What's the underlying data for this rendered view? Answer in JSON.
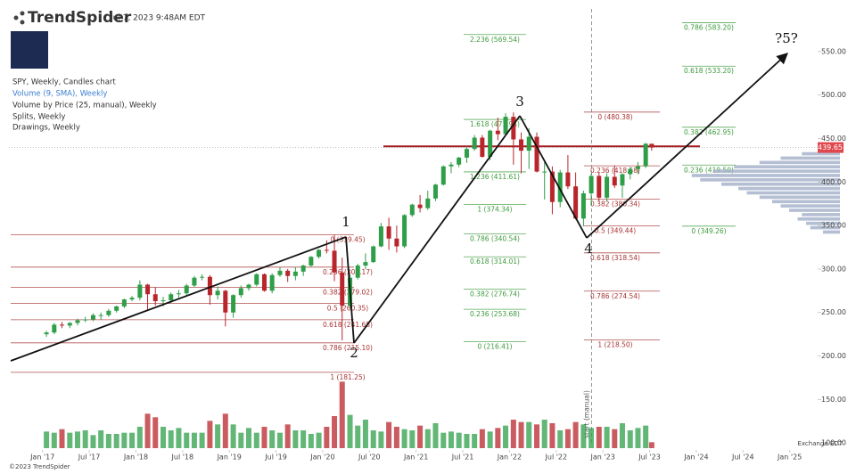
{
  "header": {
    "brand": "TrendSpider",
    "timestamp": "Jul 7, 2023 9:48AM EDT"
  },
  "legend": [
    "SPY, Weekly, Candles chart",
    "Volume (9, SMA), Weekly",
    "Volume by Price (25, manual), Weekly",
    "Splits, Weekly",
    "Drawings, Weekly"
  ],
  "footer": {
    "copyright": "©2023 TrendSpider",
    "exchange": "Exchange EDT"
  },
  "chart_data": {
    "type": "candlestick",
    "x": [
      2017.042,
      2017.125,
      2017.208,
      2017.292,
      2017.375,
      2017.458,
      2017.542,
      2017.625,
      2017.708,
      2017.792,
      2017.875,
      2017.958,
      2018.042,
      2018.125,
      2018.208,
      2018.292,
      2018.375,
      2018.458,
      2018.542,
      2018.625,
      2018.708,
      2018.792,
      2018.875,
      2018.958,
      2019.042,
      2019.125,
      2019.208,
      2019.292,
      2019.375,
      2019.458,
      2019.542,
      2019.625,
      2019.708,
      2019.792,
      2019.875,
      2019.958,
      2020.042,
      2020.125,
      2020.208,
      2020.292,
      2020.375,
      2020.458,
      2020.542,
      2020.625,
      2020.708,
      2020.792,
      2020.875,
      2020.958,
      2021.042,
      2021.125,
      2021.208,
      2021.292,
      2021.375,
      2021.458,
      2021.542,
      2021.625,
      2021.708,
      2021.792,
      2021.875,
      2021.958,
      2022.042,
      2022.125,
      2022.208,
      2022.292,
      2022.375,
      2022.458,
      2022.542,
      2022.625,
      2022.708,
      2022.792,
      2022.875,
      2022.958,
      2023.042,
      2023.125,
      2023.208,
      2023.292,
      2023.375,
      2023.458,
      2023.522
    ],
    "open": [
      225,
      227,
      236,
      235,
      238,
      241,
      242,
      247,
      247,
      252,
      257,
      265,
      267,
      282,
      271,
      263,
      264,
      271,
      272,
      281,
      290,
      291,
      270,
      275,
      250,
      270,
      278,
      282,
      294,
      275,
      293,
      298,
      292,
      297,
      304,
      314,
      322,
      321,
      296,
      258,
      290,
      304,
      308,
      326,
      349,
      335,
      326,
      362,
      374,
      370,
      381,
      397,
      418,
      420,
      428,
      438,
      451,
      429,
      459,
      455,
      475,
      449,
      436,
      452,
      412,
      412,
      377,
      411,
      395,
      358,
      387,
      407,
      382,
      406,
      396,
      409,
      415,
      418,
      444
    ],
    "high": [
      229,
      238,
      239,
      239,
      243,
      245,
      249,
      250,
      254,
      258,
      266,
      269,
      287,
      283,
      279,
      268,
      273,
      276,
      283,
      292,
      294,
      293,
      280,
      276,
      271,
      281,
      283,
      295,
      295,
      295,
      302,
      300,
      302,
      305,
      315,
      323,
      333,
      339,
      313,
      294,
      306,
      318,
      327,
      353,
      359,
      350,
      363,
      375,
      385,
      390,
      398,
      419,
      423,
      429,
      441,
      454,
      454,
      460,
      474,
      479,
      480,
      457,
      462,
      457,
      423,
      418,
      414,
      431,
      411,
      390,
      410,
      411,
      410,
      419,
      410,
      417,
      423,
      445,
      443
    ],
    "low": [
      222,
      225,
      232,
      232,
      235,
      239,
      240,
      242,
      245,
      250,
      255,
      263,
      264,
      253,
      258,
      257,
      261,
      267,
      269,
      279,
      287,
      259,
      265,
      234,
      244,
      267,
      275,
      280,
      274,
      272,
      291,
      285,
      287,
      292,
      302,
      312,
      318,
      286,
      218,
      255,
      288,
      300,
      307,
      325,
      322,
      319,
      324,
      360,
      365,
      368,
      378,
      396,
      410,
      417,
      422,
      436,
      428,
      425,
      448,
      454,
      420,
      410,
      415,
      411,
      380,
      363,
      371,
      392,
      357,
      349,
      373,
      378,
      378,
      393,
      382,
      403,
      409,
      416,
      436
    ],
    "close": [
      227,
      236,
      235,
      238,
      241,
      242,
      247,
      247,
      252,
      257,
      265,
      267,
      282,
      271,
      263,
      264,
      271,
      272,
      281,
      290,
      291,
      270,
      275,
      250,
      270,
      278,
      282,
      294,
      275,
      293,
      298,
      292,
      297,
      304,
      314,
      322,
      321,
      296,
      258,
      290,
      304,
      308,
      326,
      349,
      335,
      326,
      362,
      374,
      370,
      381,
      397,
      418,
      420,
      428,
      438,
      451,
      429,
      459,
      455,
      475,
      449,
      436,
      452,
      412,
      412,
      377,
      411,
      395,
      358,
      387,
      407,
      382,
      406,
      396,
      409,
      415,
      418,
      444,
      439.65
    ],
    "volume": [
      1400,
      1300,
      1600,
      1300,
      1400,
      1500,
      1100,
      1500,
      1200,
      1200,
      1300,
      1300,
      1800,
      2900,
      2600,
      1800,
      1500,
      1700,
      1300,
      1300,
      1300,
      2300,
      2000,
      2900,
      2000,
      1300,
      1700,
      1300,
      1800,
      1500,
      1300,
      2000,
      1500,
      1500,
      1200,
      1300,
      1800,
      2700,
      5600,
      2800,
      1900,
      2400,
      1500,
      1400,
      2200,
      1800,
      1600,
      1500,
      1900,
      1600,
      2100,
      1300,
      1400,
      1300,
      1200,
      1200,
      1600,
      1400,
      1700,
      1900,
      2400,
      2200,
      2200,
      2000,
      2400,
      2100,
      1500,
      1600,
      2200,
      2000,
      1700,
      1800,
      1800,
      1600,
      2100,
      1500,
      1700,
      1900,
      500
    ],
    "volume_lim": [
      0,
      6000
    ],
    "up_color": "#2e9e48",
    "down_color": "#b8262c",
    "xlim": [
      2016.64,
      2025.28
    ],
    "xticks": [
      {
        "value": 2017,
        "label": "Jan '17"
      },
      {
        "value": 2017.5,
        "label": "Jul '17"
      },
      {
        "value": 2018,
        "label": "Jan '18"
      },
      {
        "value": 2018.5,
        "label": "Jul '18"
      },
      {
        "value": 2019,
        "label": "Jan '19"
      },
      {
        "value": 2019.5,
        "label": "Jul '19"
      },
      {
        "value": 2020,
        "label": "Jan '20"
      },
      {
        "value": 2020.5,
        "label": "Jul '20"
      },
      {
        "value": 2021,
        "label": "Jan '21"
      },
      {
        "value": 2021.5,
        "label": "Jul '21"
      },
      {
        "value": 2022,
        "label": "Jan '22"
      },
      {
        "value": 2022.5,
        "label": "Jul '22"
      },
      {
        "value": 2023,
        "label": "Jan '23"
      },
      {
        "value": 2023.5,
        "label": "Jul '23"
      },
      {
        "value": 2024,
        "label": "Jan '24"
      },
      {
        "value": 2024.5,
        "label": "Jul '24"
      },
      {
        "value": 2025,
        "label": "Jan '25"
      }
    ],
    "ylim": [
      92,
      599
    ],
    "yticks": [
      {
        "value": 100,
        "label": "100.00"
      },
      {
        "value": 150,
        "label": "150.00"
      },
      {
        "value": 200,
        "label": "200.00"
      },
      {
        "value": 250,
        "label": "250.00"
      },
      {
        "value": 300,
        "label": "300.00"
      },
      {
        "value": 350,
        "label": "350.00"
      },
      {
        "value": 400,
        "label": "400.00"
      },
      {
        "value": 450,
        "label": "450.00"
      },
      {
        "value": 500,
        "label": "500.00"
      },
      {
        "value": 550,
        "label": "550.00"
      }
    ],
    "volume_profile": {
      "bins": [
        340,
        345,
        350,
        355,
        360,
        365,
        370,
        375,
        380,
        385,
        390,
        395,
        400,
        405,
        410,
        415,
        420,
        425,
        430,
        435,
        440
      ],
      "values": [
        20,
        35,
        40,
        50,
        45,
        60,
        70,
        80,
        95,
        110,
        120,
        140,
        165,
        175,
        150,
        125,
        95,
        70,
        45,
        25
      ],
      "lim": [
        0,
        200
      ],
      "color": "#a3afc8"
    },
    "last_price": {
      "value": 439.65,
      "label": "439.65",
      "color": "#e0484d"
    },
    "resistance": {
      "value": 441,
      "color": "#a31d22"
    },
    "marker": {
      "x": 2022.88,
      "label": "start (manual)"
    },
    "fib_sets": [
      {
        "color": "#a83232",
        "levels": [
          {
            "value": 339.45,
            "label": "0 (339.45)"
          },
          {
            "value": 302.17,
            "label": "0.236 (302.17)"
          },
          {
            "value": 279.02,
            "label": "0.382 (279.02)"
          },
          {
            "value": 260.35,
            "label": "0.5 (260.35)"
          },
          {
            "value": 241.68,
            "label": "0.618 (241.68)"
          },
          {
            "value": 215.1,
            "label": "0.786 (215.10)"
          },
          {
            "value": 181.25,
            "label": "1 (181.25)"
          }
        ]
      },
      {
        "color": "#3c9a3c",
        "levels": [
          {
            "value": 569.54,
            "label": "2.236 (569.54)"
          },
          {
            "value": 471.94,
            "label": "1.618 (471.94)"
          },
          {
            "value": 411.61,
            "label": "1.236 (411.61)"
          },
          {
            "value": 374.34,
            "label": "1 (374.34)"
          },
          {
            "value": 340.54,
            "label": "0.786 (340.54)"
          },
          {
            "value": 314.01,
            "label": "0.618 (314.01)"
          },
          {
            "value": 276.74,
            "label": "0.382 (276.74)"
          },
          {
            "value": 253.68,
            "label": "0.236 (253.68)"
          },
          {
            "value": 216.41,
            "label": "0 (216.41)"
          }
        ]
      },
      {
        "color": "#a83232",
        "levels": [
          {
            "value": 480.38,
            "label": "0 (480.38)"
          },
          {
            "value": 418.58,
            "label": "0.236 (418.58)"
          },
          {
            "value": 380.34,
            "label": "0.382 (380.34)"
          },
          {
            "value": 349.44,
            "label": "0.5 (349.44)"
          },
          {
            "value": 318.54,
            "label": "0.618 (318.54)"
          },
          {
            "value": 274.54,
            "label": "0.786 (274.54)"
          },
          {
            "value": 218.5,
            "label": "1 (218.50)"
          }
        ]
      },
      {
        "color": "#3c9a3c",
        "levels": [
          {
            "value": 583.2,
            "label": "0.786 (583.20)"
          },
          {
            "value": 533.2,
            "label": "0.618 (533.20)"
          },
          {
            "value": 462.95,
            "label": "0.382 (462.95)"
          },
          {
            "value": 419.5,
            "label": "0.236 (419.50)"
          },
          {
            "value": 349.26,
            "label": "0 (349.26)"
          }
        ]
      }
    ],
    "wave_labels": [
      "1",
      "2",
      "3",
      "4",
      "?5?"
    ]
  }
}
